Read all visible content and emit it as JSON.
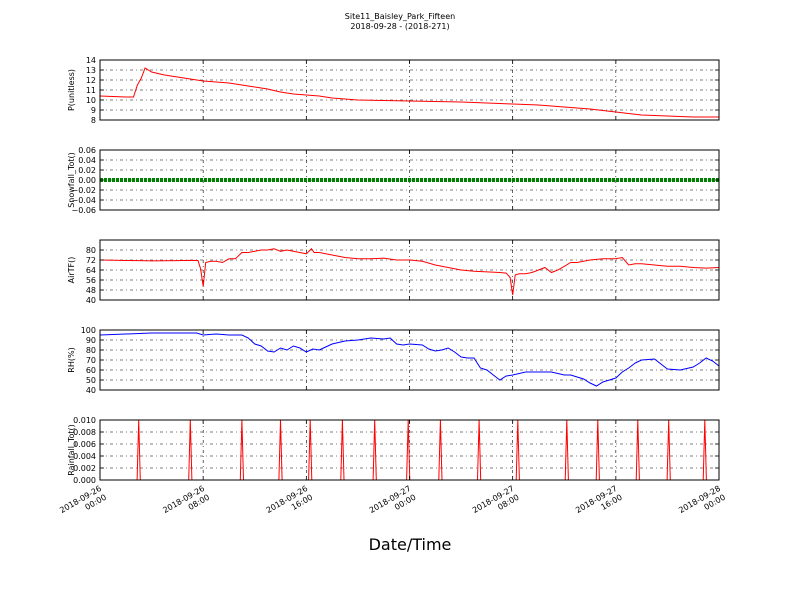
{
  "chart_data": {
    "type": "line",
    "title": "Site11_Baisley_Park_Fifteen",
    "subtitle": "2018-09-28 - (2018-271)",
    "xlabel": "Date/Time",
    "x_ticks": [
      "2018-09-26\n00:00",
      "2018-09-26\n08:00",
      "2018-09-26\n16:00",
      "2018-09-27\n00:00",
      "2018-09-27\n08:00",
      "2018-09-27\n16:00",
      "2018-09-28\n00:00"
    ],
    "x_tick_hours": [
      0,
      8,
      16,
      24,
      32,
      40,
      48
    ],
    "x_range_hours": [
      0,
      48
    ],
    "grid": true,
    "panels": [
      {
        "ylabel": "P(unitless)",
        "ylim": [
          8,
          14
        ],
        "yticks": [
          "8",
          "9",
          "10",
          "11",
          "12",
          "13",
          "14"
        ],
        "ytick_values": [
          8,
          9,
          10,
          11,
          12,
          13,
          14
        ],
        "color": "#ff0000",
        "style": "line",
        "x": [
          0,
          1,
          2,
          2.6,
          2.9,
          3.2,
          3.5,
          4,
          5,
          6,
          7,
          8,
          9,
          10,
          11,
          12,
          13,
          14,
          15,
          16,
          17,
          18,
          19,
          20,
          22,
          24,
          26,
          28,
          30,
          32,
          34,
          36,
          38,
          40,
          42,
          44,
          46,
          48
        ],
        "y": [
          10.4,
          10.35,
          10.3,
          10.3,
          11.5,
          12.2,
          13.2,
          12.8,
          12.5,
          12.3,
          12.1,
          11.9,
          11.8,
          11.7,
          11.5,
          11.3,
          11.1,
          10.8,
          10.6,
          10.5,
          10.4,
          10.2,
          10.1,
          10.0,
          9.95,
          9.9,
          9.85,
          9.8,
          9.7,
          9.6,
          9.5,
          9.3,
          9.1,
          8.8,
          8.5,
          8.4,
          8.3,
          8.3
        ]
      },
      {
        "ylabel": "Snowfall_Tot()",
        "ylim": [
          -0.06,
          0.06
        ],
        "yticks": [
          "−0.06",
          "−0.04",
          "−0.02",
          "0.00",
          "0.02",
          "0.04",
          "0.06"
        ],
        "ytick_values": [
          -0.06,
          -0.04,
          -0.02,
          0,
          0.02,
          0.04,
          0.06
        ],
        "color": "#008000",
        "style": "dotline",
        "x": [
          0,
          48
        ],
        "y": [
          0,
          0
        ]
      },
      {
        "ylabel": "AirTF()",
        "ylim": [
          40,
          88
        ],
        "yticks": [
          "40",
          "48",
          "56",
          "64",
          "72",
          "80"
        ],
        "ytick_values": [
          40,
          48,
          56,
          64,
          72,
          80
        ],
        "color": "#ff0000",
        "style": "line",
        "x": [
          0,
          1,
          2,
          3,
          4,
          5,
          6,
          7,
          7.6,
          7.8,
          8.0,
          8.2,
          8.6,
          9,
          9.5,
          10,
          10.5,
          11,
          11.5,
          12,
          12.5,
          13,
          13.5,
          14,
          14.5,
          15,
          15.5,
          16,
          16.4,
          16.6,
          17,
          17.5,
          18,
          19,
          20,
          21,
          22,
          23,
          24,
          25,
          26,
          27,
          28,
          29,
          30,
          31,
          31.5,
          31.8,
          32,
          32.2,
          32.5,
          33,
          33.5,
          34,
          34.5,
          35,
          35.5,
          36,
          36.5,
          37,
          38,
          39,
          40,
          40.5,
          41,
          41.5,
          42,
          43,
          44,
          45,
          46,
          47,
          48
        ],
        "y": [
          72,
          71.8,
          71.6,
          71.5,
          71.3,
          71.4,
          71.5,
          71.7,
          71.6,
          65,
          51,
          70,
          71,
          71,
          70,
          73,
          73,
          78,
          78,
          79,
          80,
          80,
          81,
          79,
          80,
          79,
          78,
          77,
          81,
          78,
          78,
          77,
          76,
          74,
          73,
          73,
          73.5,
          72,
          72,
          71,
          68,
          66,
          64,
          63,
          62.5,
          62,
          61.5,
          58,
          44,
          60,
          61,
          61,
          62,
          64,
          66,
          62,
          64,
          67,
          70,
          70,
          72,
          73,
          73,
          74,
          68,
          69,
          69,
          68,
          67,
          67,
          66,
          65.5,
          66
        ]
      },
      {
        "ylabel": "RH(%)",
        "ylim": [
          40,
          100
        ],
        "yticks": [
          "40",
          "50",
          "60",
          "70",
          "80",
          "90",
          "100"
        ],
        "ytick_values": [
          40,
          50,
          60,
          70,
          80,
          90,
          100
        ],
        "color": "#0000ff",
        "style": "line",
        "x": [
          0,
          2,
          4,
          6,
          7.5,
          8,
          9,
          10,
          11,
          11.5,
          12,
          12.5,
          13,
          13.5,
          14,
          14.5,
          15,
          15.5,
          16,
          16.5,
          17,
          17.5,
          18,
          19,
          20,
          21,
          22,
          22.5,
          23,
          23.5,
          24,
          25,
          25.5,
          26,
          26.5,
          27,
          27.5,
          28,
          28.5,
          29,
          29.5,
          30,
          30.5,
          31,
          31.5,
          32,
          33,
          34,
          35,
          36,
          36.5,
          37,
          37.5,
          38,
          38.5,
          39,
          39.5,
          40,
          40.5,
          41,
          41.5,
          42,
          43,
          44,
          45,
          46,
          46.5,
          47,
          47.5,
          48
        ],
        "y": [
          95,
          96,
          97,
          97,
          97,
          95,
          96,
          95,
          95,
          92,
          86,
          84,
          79,
          78,
          82,
          80,
          84,
          82,
          78,
          81,
          80,
          83,
          86,
          89,
          90,
          92,
          91,
          92,
          86,
          85,
          86,
          85,
          81,
          79,
          80,
          82,
          78,
          73,
          72,
          72,
          62,
          60,
          55,
          50,
          54,
          55,
          58,
          58,
          58,
          55,
          55,
          53,
          51,
          47,
          44,
          48,
          50,
          52,
          58,
          62,
          67,
          70,
          71,
          61,
          60,
          63,
          67,
          72,
          69,
          64
        ],
        "clamp_min": 43
      },
      {
        "ylabel": "Rainfall_Tot()",
        "ylim": [
          0,
          0.01
        ],
        "yticks": [
          "0.000",
          "0.002",
          "0.004",
          "0.006",
          "0.008",
          "0.010"
        ],
        "ytick_values": [
          0,
          0.002,
          0.004,
          0.006,
          0.008,
          0.01
        ],
        "color": "#ff0000",
        "style": "spikes",
        "spike_hours": [
          3.0,
          7.0,
          11.0,
          14.0,
          16.3,
          18.8,
          21.3,
          23.9,
          26.4,
          29.4,
          32.4,
          36.2,
          38.6,
          41.7,
          44.1,
          46.9
        ],
        "spike_value": 0.01
      }
    ]
  }
}
